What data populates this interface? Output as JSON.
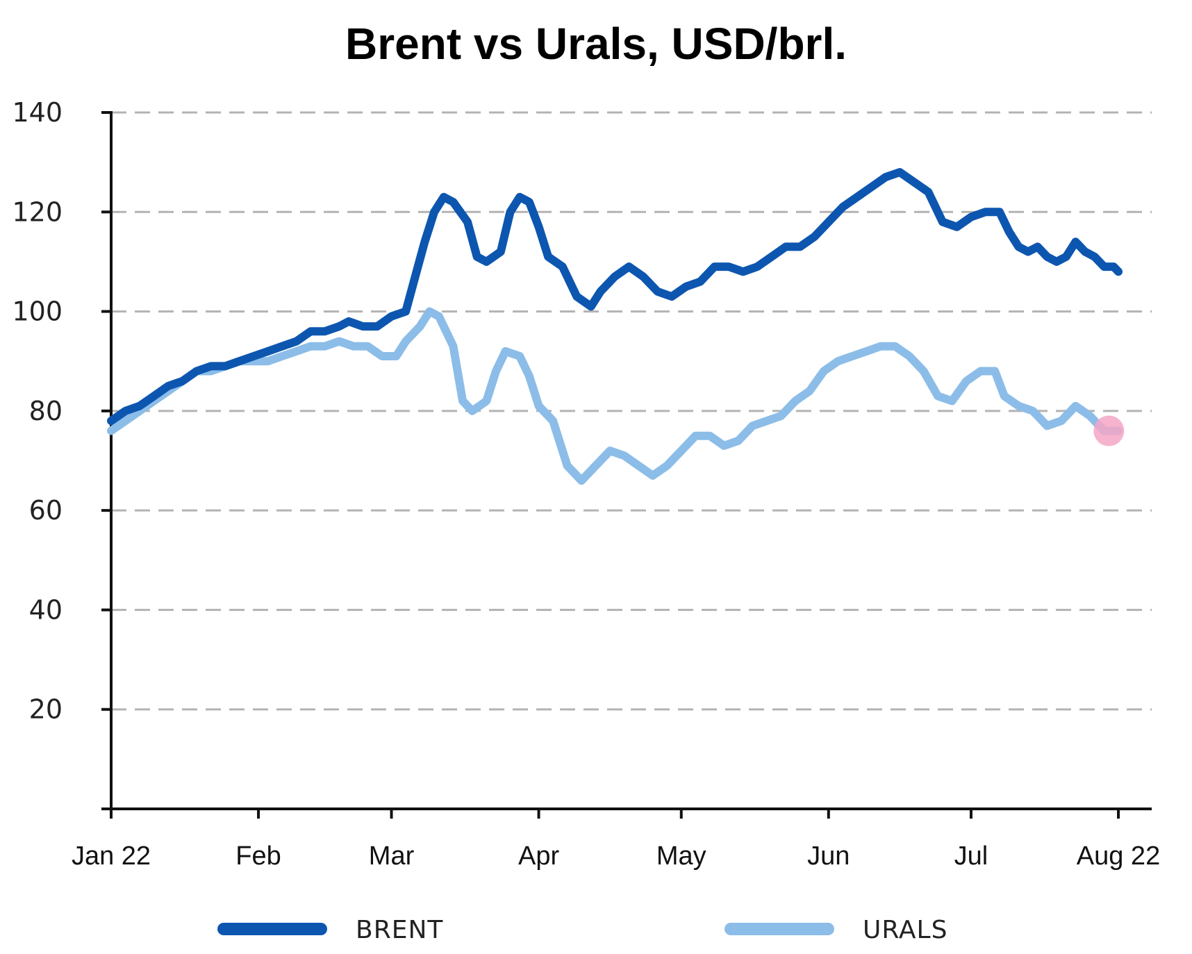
{
  "chart_data": {
    "type": "line",
    "title": "Brent vs Urals, USD/brl.",
    "xlabel": "",
    "ylabel": "",
    "ylim": [
      0,
      140
    ],
    "yticks": [
      20,
      40,
      60,
      80,
      100,
      120,
      140
    ],
    "xticks": [
      "Jan 22",
      "Feb",
      "Mar",
      "Apr",
      "May",
      "Jun",
      "Jul",
      "Aug 22"
    ],
    "x_range": [
      "2022-01-01",
      "2022-08-01"
    ],
    "grid": "horizontal dashed",
    "legend": "bottom",
    "highlight": {
      "series": "URALS",
      "x": "2022-07-30",
      "y": 76,
      "color": "#f4a6c6"
    },
    "series": [
      {
        "name": "BRENT",
        "color": "#0d56b0",
        "points": [
          [
            "2022-01-01",
            78
          ],
          [
            "2022-01-04",
            80
          ],
          [
            "2022-01-07",
            81
          ],
          [
            "2022-01-10",
            83
          ],
          [
            "2022-01-13",
            85
          ],
          [
            "2022-01-16",
            86
          ],
          [
            "2022-01-19",
            88
          ],
          [
            "2022-01-22",
            89
          ],
          [
            "2022-01-25",
            89
          ],
          [
            "2022-01-28",
            90
          ],
          [
            "2022-01-31",
            91
          ],
          [
            "2022-02-03",
            92
          ],
          [
            "2022-02-06",
            93
          ],
          [
            "2022-02-09",
            94
          ],
          [
            "2022-02-12",
            96
          ],
          [
            "2022-02-15",
            96
          ],
          [
            "2022-02-18",
            97
          ],
          [
            "2022-02-20",
            98
          ],
          [
            "2022-02-23",
            97
          ],
          [
            "2022-02-26",
            97
          ],
          [
            "2022-03-01",
            99
          ],
          [
            "2022-03-04",
            100
          ],
          [
            "2022-03-06",
            107
          ],
          [
            "2022-03-08",
            114
          ],
          [
            "2022-03-10",
            120
          ],
          [
            "2022-03-12",
            123
          ],
          [
            "2022-03-14",
            122
          ],
          [
            "2022-03-17",
            118
          ],
          [
            "2022-03-19",
            111
          ],
          [
            "2022-03-21",
            110
          ],
          [
            "2022-03-24",
            112
          ],
          [
            "2022-03-26",
            120
          ],
          [
            "2022-03-28",
            123
          ],
          [
            "2022-03-30",
            122
          ],
          [
            "2022-04-01",
            117
          ],
          [
            "2022-04-03",
            111
          ],
          [
            "2022-04-06",
            109
          ],
          [
            "2022-04-09",
            103
          ],
          [
            "2022-04-12",
            101
          ],
          [
            "2022-04-14",
            104
          ],
          [
            "2022-04-17",
            107
          ],
          [
            "2022-04-20",
            109
          ],
          [
            "2022-04-23",
            107
          ],
          [
            "2022-04-26",
            104
          ],
          [
            "2022-04-29",
            103
          ],
          [
            "2022-05-02",
            105
          ],
          [
            "2022-05-05",
            106
          ],
          [
            "2022-05-08",
            109
          ],
          [
            "2022-05-11",
            109
          ],
          [
            "2022-05-14",
            108
          ],
          [
            "2022-05-17",
            109
          ],
          [
            "2022-05-20",
            111
          ],
          [
            "2022-05-23",
            113
          ],
          [
            "2022-05-26",
            113
          ],
          [
            "2022-05-29",
            115
          ],
          [
            "2022-06-01",
            118
          ],
          [
            "2022-06-04",
            121
          ],
          [
            "2022-06-07",
            123
          ],
          [
            "2022-06-10",
            125
          ],
          [
            "2022-06-13",
            127
          ],
          [
            "2022-06-16",
            128
          ],
          [
            "2022-06-19",
            126
          ],
          [
            "2022-06-22",
            124
          ],
          [
            "2022-06-25",
            118
          ],
          [
            "2022-06-28",
            117
          ],
          [
            "2022-07-01",
            119
          ],
          [
            "2022-07-04",
            120
          ],
          [
            "2022-07-07",
            120
          ],
          [
            "2022-07-09",
            116
          ],
          [
            "2022-07-11",
            113
          ],
          [
            "2022-07-13",
            112
          ],
          [
            "2022-07-15",
            113
          ],
          [
            "2022-07-17",
            111
          ],
          [
            "2022-07-19",
            110
          ],
          [
            "2022-07-21",
            111
          ],
          [
            "2022-07-23",
            114
          ],
          [
            "2022-07-25",
            112
          ],
          [
            "2022-07-27",
            111
          ],
          [
            "2022-07-29",
            109
          ],
          [
            "2022-07-31",
            109
          ],
          [
            "2022-08-01",
            108
          ]
        ]
      },
      {
        "name": "URALS",
        "color": "#8cbde8",
        "points": [
          [
            "2022-01-01",
            76
          ],
          [
            "2022-01-04",
            78
          ],
          [
            "2022-01-07",
            80
          ],
          [
            "2022-01-10",
            82
          ],
          [
            "2022-01-13",
            84
          ],
          [
            "2022-01-16",
            86
          ],
          [
            "2022-01-19",
            88
          ],
          [
            "2022-01-22",
            88
          ],
          [
            "2022-01-25",
            89
          ],
          [
            "2022-01-28",
            90
          ],
          [
            "2022-01-31",
            90
          ],
          [
            "2022-02-03",
            90
          ],
          [
            "2022-02-06",
            91
          ],
          [
            "2022-02-09",
            92
          ],
          [
            "2022-02-12",
            93
          ],
          [
            "2022-02-15",
            93
          ],
          [
            "2022-02-18",
            94
          ],
          [
            "2022-02-21",
            93
          ],
          [
            "2022-02-24",
            93
          ],
          [
            "2022-02-27",
            91
          ],
          [
            "2022-03-02",
            91
          ],
          [
            "2022-03-04",
            94
          ],
          [
            "2022-03-07",
            97
          ],
          [
            "2022-03-09",
            100
          ],
          [
            "2022-03-11",
            99
          ],
          [
            "2022-03-14",
            93
          ],
          [
            "2022-03-16",
            82
          ],
          [
            "2022-03-18",
            80
          ],
          [
            "2022-03-21",
            82
          ],
          [
            "2022-03-23",
            88
          ],
          [
            "2022-03-25",
            92
          ],
          [
            "2022-03-28",
            91
          ],
          [
            "2022-03-30",
            87
          ],
          [
            "2022-04-01",
            81
          ],
          [
            "2022-04-04",
            78
          ],
          [
            "2022-04-07",
            69
          ],
          [
            "2022-04-10",
            66
          ],
          [
            "2022-04-13",
            69
          ],
          [
            "2022-04-16",
            72
          ],
          [
            "2022-04-19",
            71
          ],
          [
            "2022-04-22",
            69
          ],
          [
            "2022-04-25",
            67
          ],
          [
            "2022-04-28",
            69
          ],
          [
            "2022-05-01",
            72
          ],
          [
            "2022-05-04",
            75
          ],
          [
            "2022-05-07",
            75
          ],
          [
            "2022-05-10",
            73
          ],
          [
            "2022-05-13",
            74
          ],
          [
            "2022-05-16",
            77
          ],
          [
            "2022-05-19",
            78
          ],
          [
            "2022-05-22",
            79
          ],
          [
            "2022-05-25",
            82
          ],
          [
            "2022-05-28",
            84
          ],
          [
            "2022-05-31",
            88
          ],
          [
            "2022-06-03",
            90
          ],
          [
            "2022-06-06",
            91
          ],
          [
            "2022-06-09",
            92
          ],
          [
            "2022-06-12",
            93
          ],
          [
            "2022-06-15",
            93
          ],
          [
            "2022-06-18",
            91
          ],
          [
            "2022-06-21",
            88
          ],
          [
            "2022-06-24",
            83
          ],
          [
            "2022-06-27",
            82
          ],
          [
            "2022-06-30",
            86
          ],
          [
            "2022-07-03",
            88
          ],
          [
            "2022-07-06",
            88
          ],
          [
            "2022-07-08",
            83
          ],
          [
            "2022-07-11",
            81
          ],
          [
            "2022-07-14",
            80
          ],
          [
            "2022-07-17",
            77
          ],
          [
            "2022-07-20",
            78
          ],
          [
            "2022-07-23",
            81
          ],
          [
            "2022-07-26",
            79
          ],
          [
            "2022-07-29",
            76
          ],
          [
            "2022-08-01",
            76
          ]
        ]
      }
    ]
  }
}
